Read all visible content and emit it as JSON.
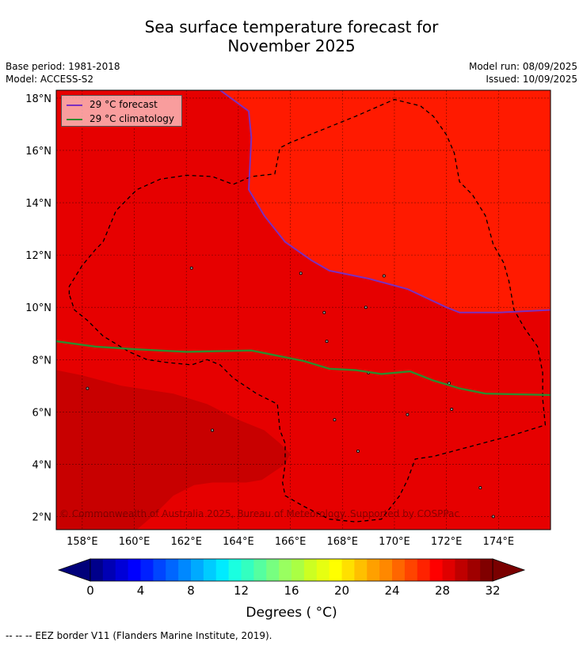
{
  "title": [
    "Sea surface temperature forecast for",
    "November 2025"
  ],
  "base_period": "Base period: 1981-2018",
  "model": "Model: ACCESS-S2",
  "model_run": "Model run: 08/09/2025",
  "issued": "Issued: 10/09/2025",
  "copyright": "© Commonwealth of Australia 2025, Bureau of Meteorology. Supported by COSPPac",
  "footer_note": "--  --  -- EEZ border V11 (Flanders Marine Institute, 2019).",
  "legend": {
    "forecast": "29 °C  forecast",
    "climatology": "29 °C  climatology",
    "forecast_color": "#7b2fbf",
    "climatology_color": "#2e8b2e"
  },
  "map": {
    "lon_range": [
      157,
      176
    ],
    "lat_range": [
      1.5,
      18.3
    ],
    "lon_ticks": [
      {
        "value": 158,
        "label": "158°E"
      },
      {
        "value": 160,
        "label": "160°E"
      },
      {
        "value": 162,
        "label": "162°E"
      },
      {
        "value": 164,
        "label": "164°E"
      },
      {
        "value": 166,
        "label": "166°E"
      },
      {
        "value": 168,
        "label": "168°E"
      },
      {
        "value": 170,
        "label": "170°E"
      },
      {
        "value": 172,
        "label": "172°E"
      },
      {
        "value": 174,
        "label": "174°E"
      }
    ],
    "lat_ticks": [
      {
        "value": 2,
        "label": "2°N"
      },
      {
        "value": 4,
        "label": "4°N"
      },
      {
        "value": 6,
        "label": "6°N"
      },
      {
        "value": 8,
        "label": "8°N"
      },
      {
        "value": 10,
        "label": "10°N"
      },
      {
        "value": 12,
        "label": "12°N"
      },
      {
        "value": 14,
        "label": "14°N"
      },
      {
        "value": 16,
        "label": "16°N"
      },
      {
        "value": 18,
        "label": "18°N"
      }
    ],
    "background_color": "#e60000",
    "warm_region_color": "#ff1a00",
    "cool_region_color": "#c80000",
    "forecast_29_contour": [
      [
        163.3,
        18.3
      ],
      [
        164.4,
        17.5
      ],
      [
        164.5,
        16.5
      ],
      [
        164.4,
        14.5
      ],
      [
        165,
        13.5
      ],
      [
        165.8,
        12.5
      ],
      [
        166.8,
        11.8
      ],
      [
        167.5,
        11.4
      ],
      [
        169,
        11.1
      ],
      [
        170.5,
        10.7
      ],
      [
        172,
        10
      ],
      [
        172.5,
        9.8
      ],
      [
        174,
        9.8
      ],
      [
        176,
        9.9
      ]
    ],
    "climatology_29_contour": [
      [
        157,
        8.7
      ],
      [
        158.5,
        8.5
      ],
      [
        160,
        8.4
      ],
      [
        162,
        8.3
      ],
      [
        164.5,
        8.35
      ],
      [
        165.5,
        8.15
      ],
      [
        166.5,
        7.95
      ],
      [
        167.5,
        7.65
      ],
      [
        168.5,
        7.6
      ],
      [
        169.5,
        7.45
      ],
      [
        170.6,
        7.55
      ],
      [
        171.5,
        7.2
      ],
      [
        172.5,
        6.9
      ],
      [
        173.5,
        6.7
      ],
      [
        176,
        6.65
      ]
    ],
    "cool_region": [
      [
        157,
        7.6
      ],
      [
        158,
        7.4
      ],
      [
        159.5,
        7.0
      ],
      [
        161.5,
        6.7
      ],
      [
        162.8,
        6.3
      ],
      [
        164,
        5.7
      ],
      [
        165,
        5.3
      ],
      [
        165.6,
        4.8
      ],
      [
        166,
        4.4
      ],
      [
        165.8,
        4.0
      ],
      [
        164.9,
        3.4
      ],
      [
        164.3,
        3.3
      ],
      [
        163,
        3.3
      ],
      [
        162.3,
        3.2
      ],
      [
        161.5,
        2.8
      ],
      [
        160.8,
        2.1
      ],
      [
        160.1,
        1.5
      ],
      [
        157,
        1.5
      ]
    ],
    "eez_border": [
      [
        157.5,
        10.5
      ],
      [
        157.5,
        10.8
      ],
      [
        158,
        11.6
      ],
      [
        158.5,
        12.2
      ],
      [
        158.8,
        12.5
      ],
      [
        159.3,
        13.7
      ],
      [
        160.1,
        14.5
      ],
      [
        161,
        14.9
      ],
      [
        162,
        15.05
      ],
      [
        163,
        15
      ],
      [
        163.8,
        14.7
      ],
      [
        164.5,
        15
      ],
      [
        165.4,
        15.1
      ],
      [
        165.6,
        16.1
      ],
      [
        166,
        16.3
      ],
      [
        167,
        16.7
      ],
      [
        168.5,
        17.3
      ],
      [
        170,
        17.95
      ],
      [
        171,
        17.7
      ],
      [
        171.5,
        17.3
      ],
      [
        172,
        16.6
      ],
      [
        172.3,
        15.9
      ],
      [
        172.5,
        14.8
      ],
      [
        173,
        14.3
      ],
      [
        173.5,
        13.5
      ],
      [
        173.8,
        12.4
      ],
      [
        174.2,
        11.7
      ],
      [
        174.4,
        11
      ],
      [
        174.6,
        9.9
      ],
      [
        175,
        9.2
      ],
      [
        175.5,
        8.5
      ],
      [
        175.7,
        7.5
      ],
      [
        175.7,
        6.5
      ],
      [
        175.8,
        5.5
      ],
      [
        174.5,
        5.1
      ],
      [
        173,
        4.7
      ],
      [
        171.5,
        4.3
      ],
      [
        170.8,
        4.2
      ],
      [
        170.5,
        3.4
      ],
      [
        170.2,
        2.8
      ],
      [
        169.5,
        1.9
      ],
      [
        168.5,
        1.8
      ],
      [
        167.5,
        1.9
      ],
      [
        166.5,
        2.4
      ],
      [
        165.8,
        2.8
      ],
      [
        165.7,
        3.3
      ],
      [
        165.8,
        4.0
      ],
      [
        165.8,
        4.8
      ],
      [
        165.6,
        5.3
      ],
      [
        165.5,
        6.3
      ],
      [
        164.7,
        6.7
      ],
      [
        163.8,
        7.3
      ],
      [
        163.3,
        7.8
      ],
      [
        162.8,
        8.0
      ],
      [
        162.5,
        7.9
      ],
      [
        162.2,
        7.8
      ],
      [
        161.2,
        7.9
      ],
      [
        160.5,
        8.0
      ],
      [
        159.8,
        8.3
      ],
      [
        158.8,
        8.9
      ],
      [
        158.2,
        9.5
      ],
      [
        157.7,
        9.9
      ],
      [
        157.5,
        10.5
      ]
    ],
    "islands": [
      [
        158.2,
        6.9
      ],
      [
        163.0,
        5.3
      ],
      [
        172.1,
        7.1
      ],
      [
        170.5,
        5.9
      ],
      [
        173.3,
        3.1
      ],
      [
        168.6,
        4.5
      ],
      [
        167.3,
        9.8
      ],
      [
        166.4,
        11.3
      ],
      [
        167.7,
        5.7
      ],
      [
        169.0,
        7.5
      ],
      [
        162.2,
        11.5
      ],
      [
        172.2,
        6.1
      ],
      [
        173.8,
        2.0
      ],
      [
        168.9,
        10.0
      ],
      [
        169.6,
        11.2
      ],
      [
        167.4,
        8.7
      ]
    ]
  },
  "colorbar": {
    "title": "Degrees ( °C)",
    "min": 0,
    "max": 32,
    "step": 1,
    "tick_labels": [
      "0",
      "4",
      "8",
      "12",
      "16",
      "20",
      "24",
      "28",
      "32"
    ],
    "colors": [
      "#00008b",
      "#0000b4",
      "#0000d8",
      "#0000ff",
      "#0020ff",
      "#0045ff",
      "#0066ff",
      "#0088ff",
      "#00aaff",
      "#00ccff",
      "#00ebff",
      "#1affe0",
      "#33ffc0",
      "#55ffa0",
      "#77ff80",
      "#99ff60",
      "#aaff44",
      "#ccff22",
      "#e6ff11",
      "#ffff00",
      "#ffe000",
      "#ffc000",
      "#ffa000",
      "#ff8800",
      "#ff6600",
      "#ff4400",
      "#ff2200",
      "#ff0000",
      "#e00000",
      "#bf0000",
      "#9f0000",
      "#800000"
    ],
    "under_color": "#00007a",
    "over_color": "#7a0000"
  }
}
